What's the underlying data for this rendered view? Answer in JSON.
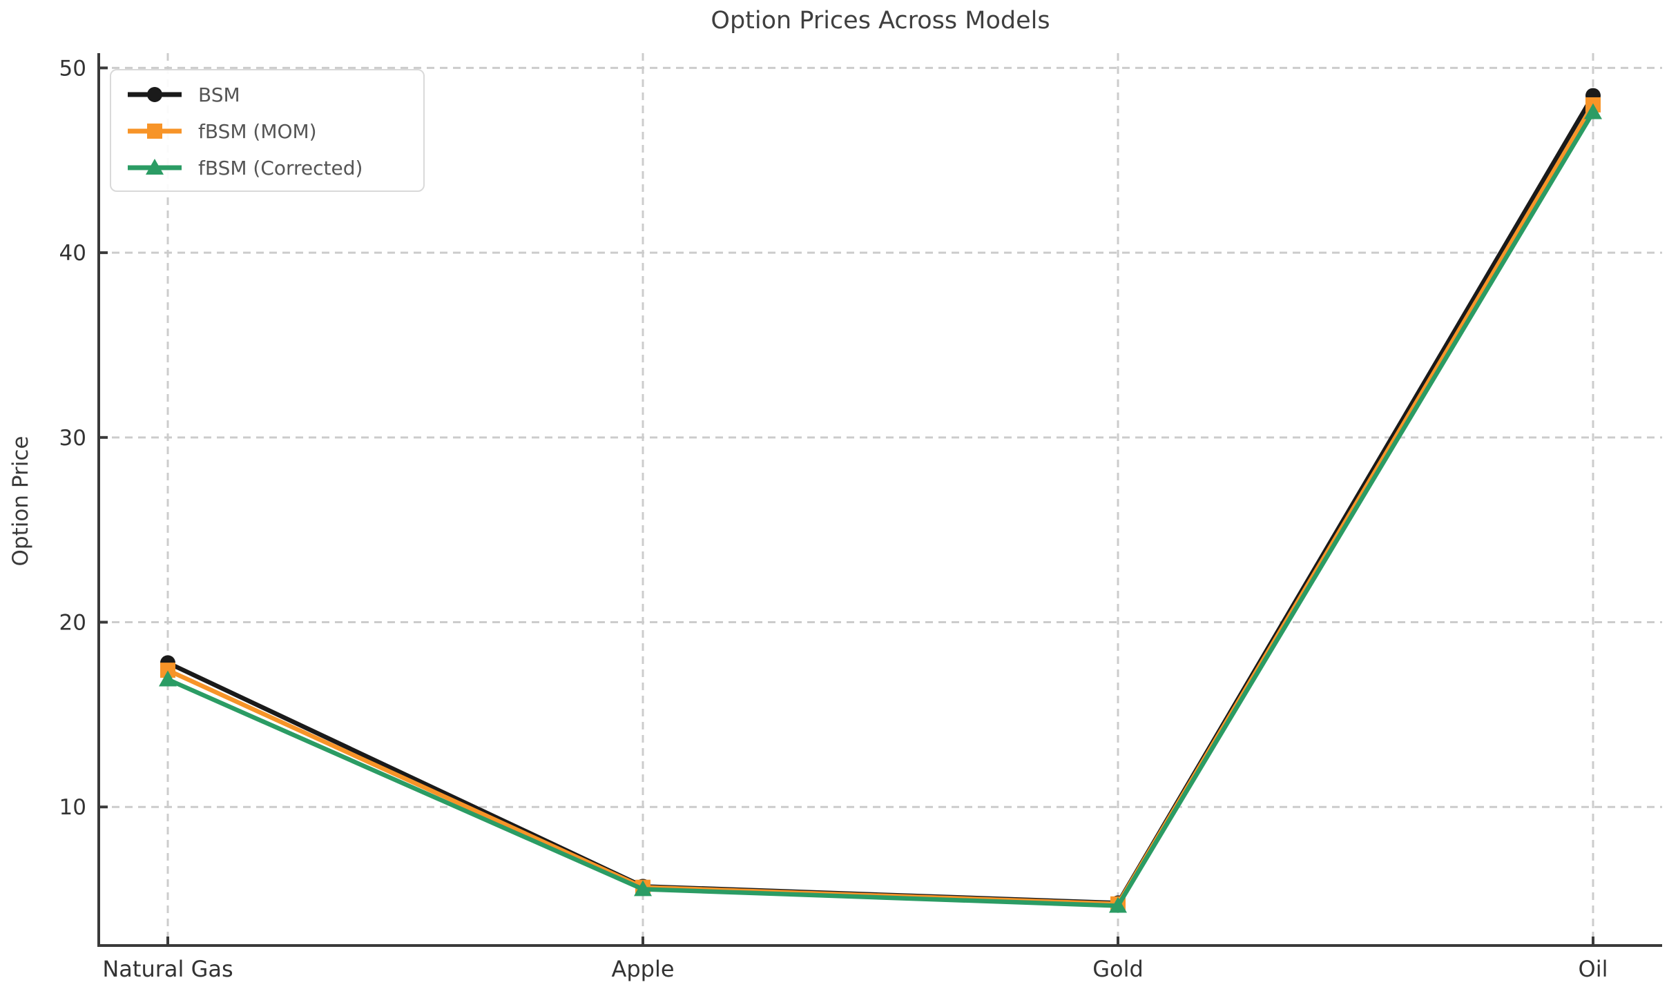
{
  "chart_data": {
    "type": "line",
    "title": "Option Prices Across Models",
    "xlabel": "",
    "ylabel": "Option Price",
    "categories": [
      "Natural Gas",
      "Apple",
      "Gold",
      "Oil"
    ],
    "series": [
      {
        "name": "BSM",
        "color": "#1a1a1a",
        "marker": "circle",
        "values": [
          17.8,
          5.7,
          4.8,
          48.5
        ]
      },
      {
        "name": "fBSM (MOM)",
        "color": "#F79428",
        "marker": "square",
        "values": [
          17.4,
          5.65,
          4.75,
          48.0
        ]
      },
      {
        "name": "fBSM (Corrected)",
        "color": "#2B9C64",
        "marker": "triangle",
        "values": [
          16.9,
          5.55,
          4.65,
          47.6
        ]
      }
    ],
    "yticks": [
      10,
      20,
      30,
      40,
      50
    ],
    "ylim": [
      2.5,
      50.8
    ],
    "grid": true,
    "grid_style": "dashed",
    "legend_position": "upper-left",
    "colors": {
      "grid": "#cccccc",
      "spine": "#3a3a3a",
      "tick_label": "#333333",
      "title": "#3f3f3f",
      "legend_text": "#555555"
    }
  }
}
